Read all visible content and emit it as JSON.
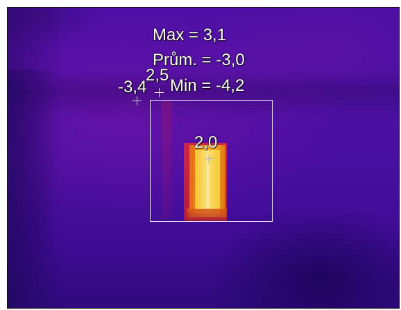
{
  "overlay": {
    "max_text": "Max = 3,1",
    "avg_text": "Prům. = -3,0",
    "min_text": "Min = -4,2"
  },
  "spots": {
    "spot_left_value": "-3,4",
    "spot_top_value": "2,5",
    "spot_center_value": "2,0"
  },
  "palette": {
    "background": "#4a0f9e",
    "hot_core": "#fbe070",
    "warm": "#f49a1c",
    "box_outline": "#f4f0ff"
  }
}
